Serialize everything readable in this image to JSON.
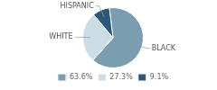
{
  "chart_data": {
    "type": "pie",
    "categories": [
      "BLACK",
      "WHITE",
      "HISPANIC"
    ],
    "values": [
      63.6,
      27.3,
      9.1
    ],
    "value_labels": [
      "63.6%",
      "27.3%",
      "9.1%"
    ],
    "colors": [
      "#7a9db0",
      "#cddde6",
      "#2b5778"
    ],
    "legend": "bottom"
  }
}
